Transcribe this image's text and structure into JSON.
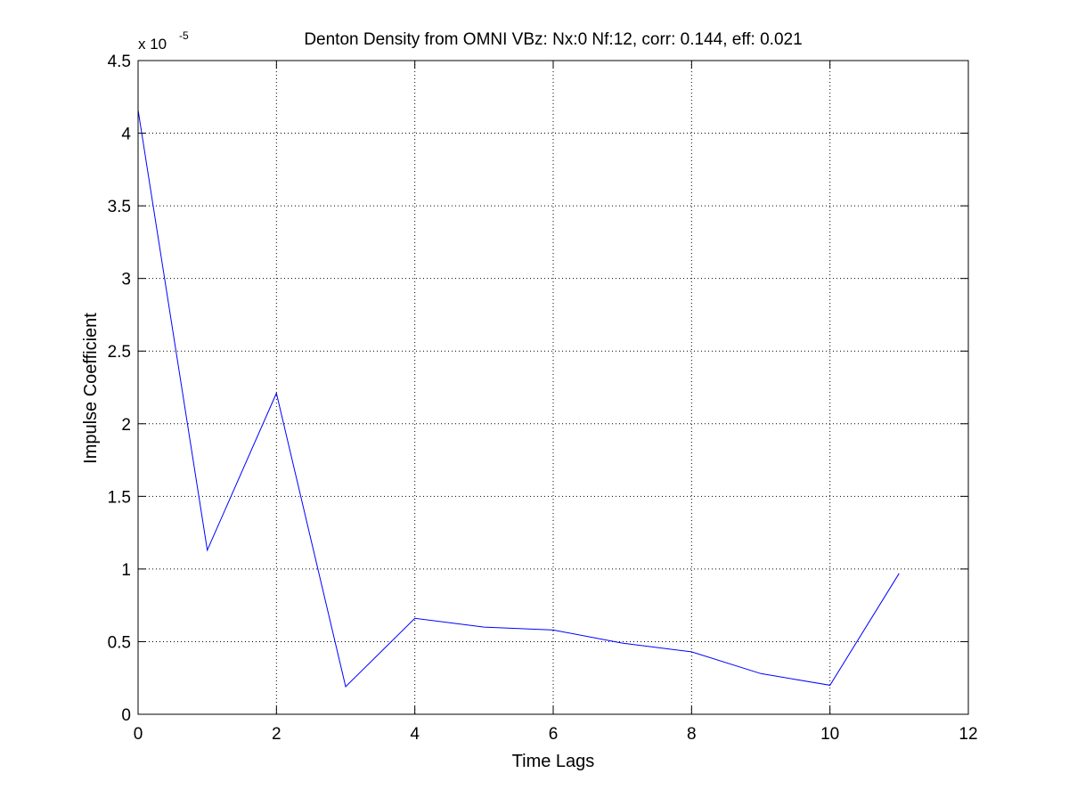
{
  "chart_data": {
    "type": "line",
    "title": "Denton Density from OMNI VBz: Nx:0 Nf:12, corr: 0.144, eff: 0.021",
    "xlabel": "Time Lags",
    "ylabel": "Impulse Coefficient",
    "y_multiplier": {
      "base": "x 10",
      "exponent": "-5"
    },
    "xlim": [
      0,
      12
    ],
    "ylim": [
      0,
      4.5
    ],
    "xticks": [
      "0",
      "2",
      "4",
      "6",
      "8",
      "10",
      "12"
    ],
    "yticks": [
      "0",
      "0.5",
      "1",
      "1.5",
      "2",
      "2.5",
      "3",
      "3.5",
      "4",
      "4.5"
    ],
    "grid": true,
    "series": [
      {
        "color": "#0000ff",
        "x": [
          0,
          1,
          2,
          3,
          4,
          5,
          6,
          7,
          8,
          9,
          10,
          11
        ],
        "y": [
          4.16,
          1.13,
          2.21,
          0.19,
          0.66,
          0.6,
          0.58,
          0.49,
          0.43,
          0.28,
          0.2,
          0.97
        ]
      }
    ]
  }
}
